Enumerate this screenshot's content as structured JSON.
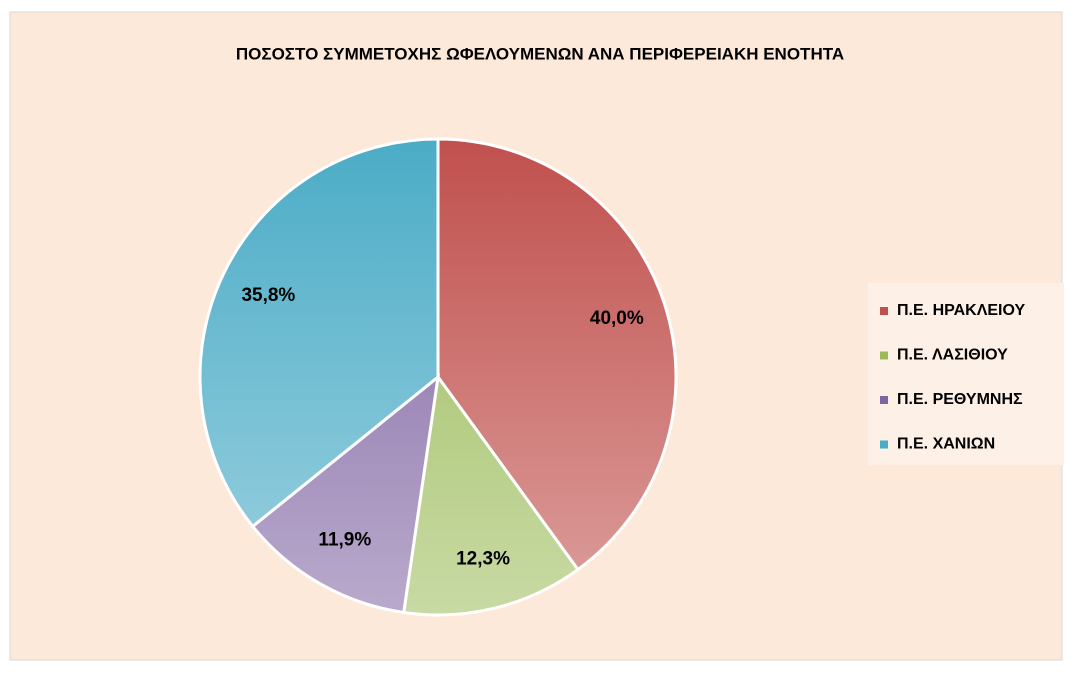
{
  "chart_data": {
    "type": "pie",
    "title": "ΠΟΣΟΣΤΟ ΣΥΜΜΕΤΟΧΗΣ ΩΦΕΛΟΥΜΕΝΩΝ ΑΝΑ ΠΕΡΙΦΕΡΕΙΑΚΗ ΕΝΟΤΗΤΑ",
    "categories": [
      "Π.Ε. ΗΡΑΚΛΕΙΟΥ",
      "Π.Ε. ΛΑΣΙΘΙΟΥ",
      "Π.Ε. ΡΕΘΥΜΝΗΣ",
      "Π.Ε. ΧΑΝΙΩΝ"
    ],
    "values": [
      40.0,
      12.3,
      11.9,
      35.8
    ],
    "value_labels": [
      "40,0%",
      "12,3%",
      "11,9%",
      "35,8%"
    ],
    "colors": [
      "#c0504d",
      "#9bbb59",
      "#8064a2",
      "#4bacc6"
    ],
    "legend": "right"
  }
}
